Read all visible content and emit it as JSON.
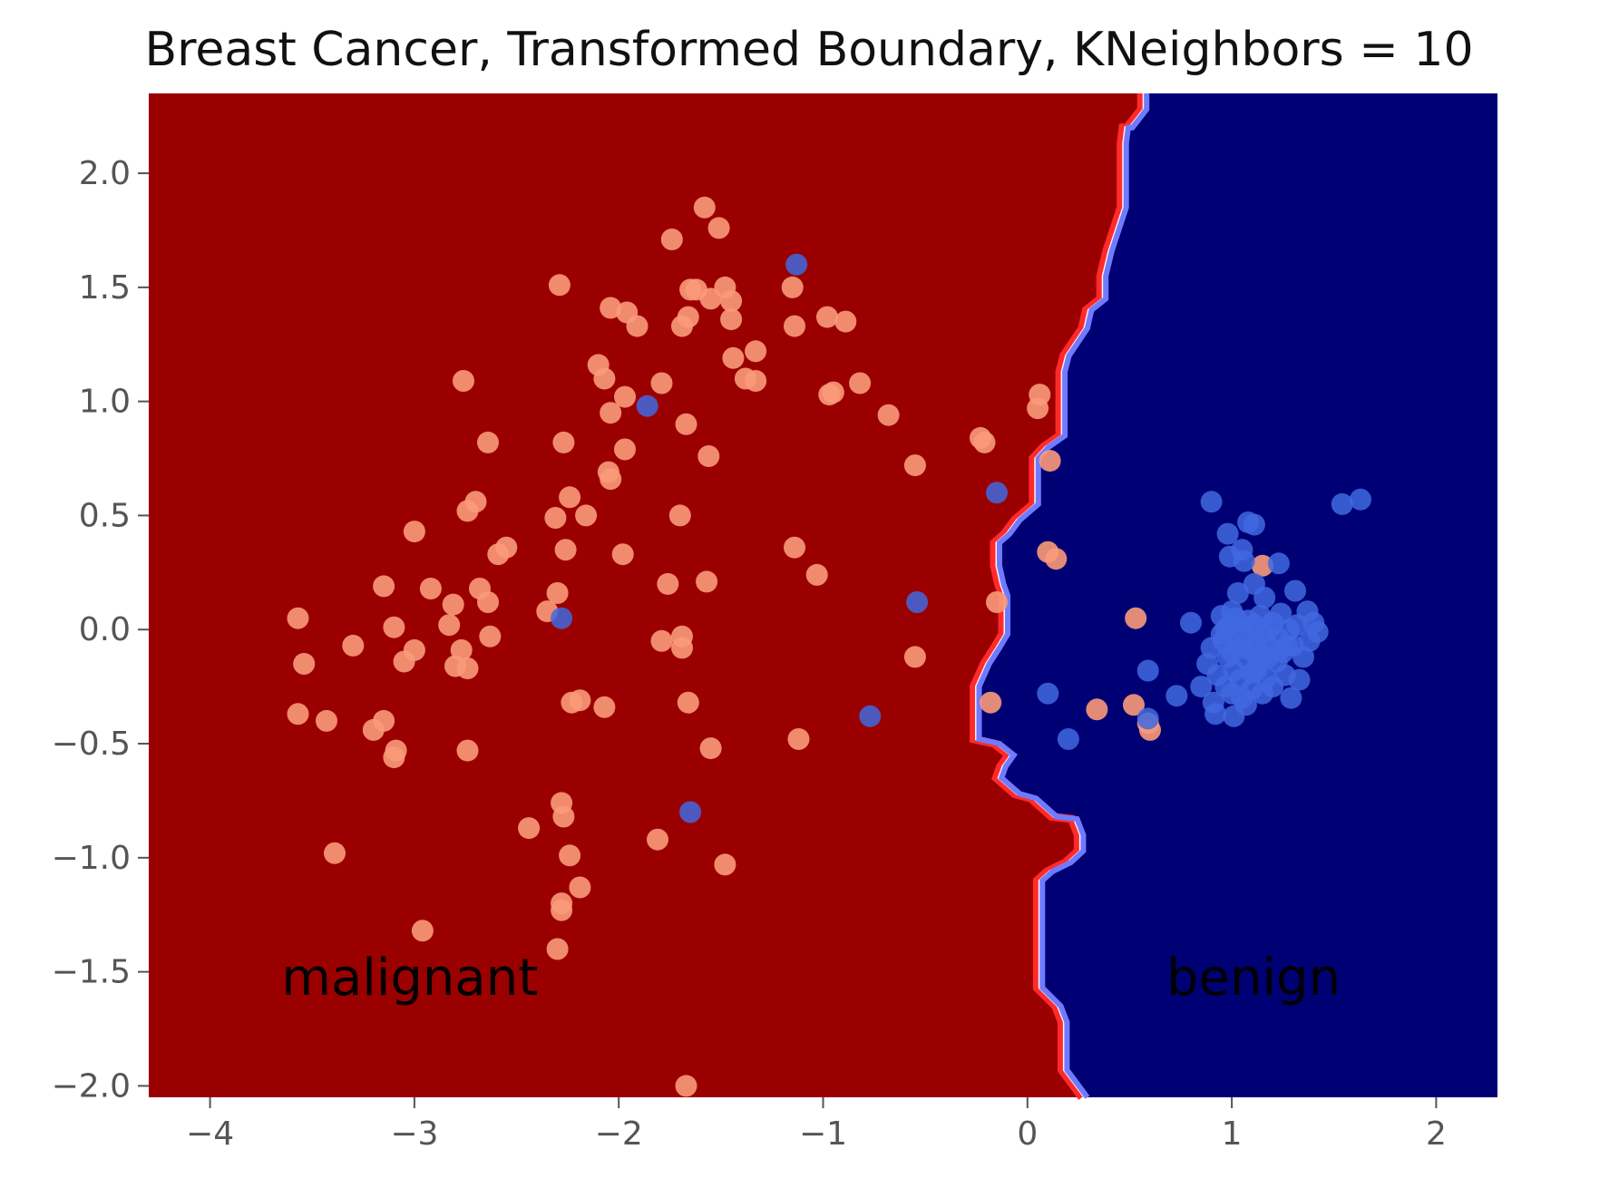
{
  "chart_data": {
    "type": "scatter",
    "title": "Breast Cancer, Transformed Boundary, KNeighbors = 10",
    "xlabel": "",
    "ylabel": "",
    "xlim": [
      -4.3,
      2.3
    ],
    "ylim": [
      -2.05,
      2.35
    ],
    "x_ticks": [
      -4,
      -3,
      -2,
      -1,
      0,
      1,
      2
    ],
    "y_ticks": [
      -2.0,
      -1.5,
      -1.0,
      -0.5,
      0.0,
      0.5,
      1.0,
      1.5,
      2.0
    ],
    "x_tick_labels": [
      "−4",
      "−3",
      "−2",
      "−1",
      "0",
      "1",
      "2"
    ],
    "y_tick_labels": [
      "−2.0",
      "−1.5",
      "−1.0",
      "−0.5",
      "0.0",
      "0.5",
      "1.0",
      "1.5",
      "2.0"
    ],
    "grid": false,
    "background": "decision regions",
    "region_colors": {
      "malignant": "#9b0000",
      "benign": "#000075"
    },
    "point_colors": {
      "malignant": "#fb9a79",
      "benign": "#4169e1"
    },
    "boundary_colors": {
      "malignant_side": "#ff2a2a",
      "benign_side": "#6f7bff"
    },
    "region_labels": [
      {
        "text": "malignant",
        "x": -3.65,
        "y": -1.6
      },
      {
        "text": "benign",
        "x": 0.68,
        "y": -1.6
      }
    ],
    "decision_boundary": [
      [
        0.57,
        2.35
      ],
      [
        0.57,
        2.28
      ],
      [
        0.5,
        2.2
      ],
      [
        0.48,
        2.2
      ],
      [
        0.47,
        2.13
      ],
      [
        0.47,
        1.85
      ],
      [
        0.4,
        1.66
      ],
      [
        0.37,
        1.55
      ],
      [
        0.37,
        1.45
      ],
      [
        0.3,
        1.4
      ],
      [
        0.28,
        1.32
      ],
      [
        0.19,
        1.2
      ],
      [
        0.17,
        1.13
      ],
      [
        0.17,
        0.85
      ],
      [
        0.09,
        0.8
      ],
      [
        0.04,
        0.75
      ],
      [
        0.04,
        0.55
      ],
      [
        -0.05,
        0.48
      ],
      [
        -0.1,
        0.42
      ],
      [
        -0.15,
        0.38
      ],
      [
        -0.15,
        0.28
      ],
      [
        -0.13,
        0.2
      ],
      [
        -0.11,
        0.15
      ],
      [
        -0.11,
        -0.02
      ],
      [
        -0.15,
        -0.08
      ],
      [
        -0.2,
        -0.15
      ],
      [
        -0.25,
        -0.25
      ],
      [
        -0.25,
        -0.48
      ],
      [
        -0.15,
        -0.5
      ],
      [
        -0.08,
        -0.55
      ],
      [
        -0.12,
        -0.6
      ],
      [
        -0.14,
        -0.65
      ],
      [
        -0.05,
        -0.72
      ],
      [
        0.03,
        -0.74
      ],
      [
        0.13,
        -0.82
      ],
      [
        0.23,
        -0.83
      ],
      [
        0.26,
        -0.9
      ],
      [
        0.26,
        -0.97
      ],
      [
        0.2,
        -1.02
      ],
      [
        0.11,
        -1.06
      ],
      [
        0.06,
        -1.1
      ],
      [
        0.06,
        -1.57
      ],
      [
        0.15,
        -1.65
      ],
      [
        0.18,
        -1.72
      ],
      [
        0.18,
        -1.93
      ],
      [
        0.28,
        -2.05
      ]
    ],
    "series": [
      {
        "class": "malignant",
        "points": [
          [
            -1.58,
            1.85
          ],
          [
            -1.51,
            1.76
          ],
          [
            -1.74,
            1.71
          ],
          [
            -2.29,
            1.51
          ],
          [
            -1.65,
            1.49
          ],
          [
            -1.62,
            1.49
          ],
          [
            -1.48,
            1.5
          ],
          [
            -1.45,
            1.44
          ],
          [
            -1.55,
            1.45
          ],
          [
            -2.04,
            1.41
          ],
          [
            -1.96,
            1.39
          ],
          [
            -1.91,
            1.33
          ],
          [
            -1.69,
            1.33
          ],
          [
            -1.66,
            1.37
          ],
          [
            -1.45,
            1.36
          ],
          [
            -1.15,
            1.5
          ],
          [
            -1.14,
            1.33
          ],
          [
            -0.98,
            1.37
          ],
          [
            -0.89,
            1.35
          ],
          [
            -1.33,
            1.22
          ],
          [
            -1.44,
            1.19
          ],
          [
            -2.1,
            1.16
          ],
          [
            -2.07,
            1.1
          ],
          [
            -1.79,
            1.08
          ],
          [
            -1.38,
            1.1
          ],
          [
            -1.33,
            1.09
          ],
          [
            -0.82,
            1.08
          ],
          [
            -0.97,
            1.03
          ],
          [
            -0.95,
            1.04
          ],
          [
            -1.97,
            1.02
          ],
          [
            -2.04,
            0.95
          ],
          [
            -2.76,
            1.09
          ],
          [
            -1.67,
            0.9
          ],
          [
            -0.68,
            0.94
          ],
          [
            -2.27,
            0.82
          ],
          [
            -2.64,
            0.82
          ],
          [
            -1.97,
            0.79
          ],
          [
            -1.56,
            0.76
          ],
          [
            -0.55,
            0.72
          ],
          [
            -2.05,
            0.69
          ],
          [
            -2.04,
            0.66
          ],
          [
            -2.24,
            0.58
          ],
          [
            -2.7,
            0.56
          ],
          [
            -2.74,
            0.52
          ],
          [
            -2.31,
            0.49
          ],
          [
            -2.16,
            0.5
          ],
          [
            -1.7,
            0.5
          ],
          [
            -3.0,
            0.43
          ],
          [
            -2.55,
            0.36
          ],
          [
            -2.59,
            0.33
          ],
          [
            -2.26,
            0.35
          ],
          [
            -1.98,
            0.33
          ],
          [
            -1.14,
            0.36
          ],
          [
            -1.03,
            0.24
          ],
          [
            -1.76,
            0.2
          ],
          [
            -1.57,
            0.21
          ],
          [
            -3.15,
            0.19
          ],
          [
            -2.92,
            0.18
          ],
          [
            -2.68,
            0.18
          ],
          [
            -2.3,
            0.16
          ],
          [
            -2.81,
            0.11
          ],
          [
            -2.64,
            0.12
          ],
          [
            -2.35,
            0.08
          ],
          [
            -3.57,
            0.05
          ],
          [
            -3.1,
            0.01
          ],
          [
            -2.83,
            0.02
          ],
          [
            -2.63,
            -0.03
          ],
          [
            -1.69,
            -0.03
          ],
          [
            -1.79,
            -0.05
          ],
          [
            -3.3,
            -0.07
          ],
          [
            -3.0,
            -0.09
          ],
          [
            -2.77,
            -0.09
          ],
          [
            -1.69,
            -0.08
          ],
          [
            -3.54,
            -0.15
          ],
          [
            -3.05,
            -0.14
          ],
          [
            -2.8,
            -0.16
          ],
          [
            -2.74,
            -0.17
          ],
          [
            -2.23,
            -0.32
          ],
          [
            -2.19,
            -0.31
          ],
          [
            -2.07,
            -0.34
          ],
          [
            -1.66,
            -0.32
          ],
          [
            -3.57,
            -0.37
          ],
          [
            -3.43,
            -0.4
          ],
          [
            -3.15,
            -0.4
          ],
          [
            -3.2,
            -0.44
          ],
          [
            -3.09,
            -0.53
          ],
          [
            -3.1,
            -0.56
          ],
          [
            -2.74,
            -0.53
          ],
          [
            -1.55,
            -0.52
          ],
          [
            -1.12,
            -0.48
          ],
          [
            -2.28,
            -0.76
          ],
          [
            -2.27,
            -0.82
          ],
          [
            -2.44,
            -0.87
          ],
          [
            -2.24,
            -0.99
          ],
          [
            -1.81,
            -0.92
          ],
          [
            -1.48,
            -1.03
          ],
          [
            -3.39,
            -0.98
          ],
          [
            -2.19,
            -1.13
          ],
          [
            -2.28,
            -1.2
          ],
          [
            -2.28,
            -1.23
          ],
          [
            -2.96,
            -1.32
          ],
          [
            -2.3,
            -1.4
          ],
          [
            -1.67,
            -2.0
          ],
          [
            -0.55,
            -0.12
          ],
          [
            -0.15,
            0.12
          ],
          [
            -0.23,
            0.84
          ],
          [
            -0.21,
            0.82
          ],
          [
            0.06,
            1.03
          ],
          [
            0.05,
            0.97
          ],
          [
            0.11,
            0.74
          ],
          [
            0.1,
            0.34
          ],
          [
            0.14,
            0.31
          ],
          [
            -0.18,
            -0.32
          ],
          [
            0.34,
            -0.35
          ],
          [
            0.52,
            -0.33
          ],
          [
            0.53,
            0.05
          ],
          [
            0.59,
            -0.41
          ],
          [
            0.6,
            -0.44
          ],
          [
            1.15,
            0.28
          ]
        ]
      },
      {
        "class": "benign",
        "points": [
          [
            -1.13,
            1.6
          ],
          [
            -1.86,
            0.98
          ],
          [
            -0.15,
            0.6
          ],
          [
            -2.28,
            0.05
          ],
          [
            -0.54,
            0.12
          ],
          [
            -0.77,
            -0.38
          ],
          [
            -1.65,
            -0.8
          ],
          [
            0.1,
            -0.28
          ],
          [
            0.2,
            -0.48
          ],
          [
            0.59,
            -0.18
          ],
          [
            0.59,
            -0.39
          ],
          [
            0.73,
            -0.29
          ],
          [
            0.8,
            0.03
          ],
          [
            0.85,
            -0.25
          ],
          [
            0.88,
            -0.15
          ],
          [
            0.9,
            -0.08
          ],
          [
            0.91,
            -0.32
          ],
          [
            0.93,
            -0.2
          ],
          [
            0.95,
            0.06
          ],
          [
            0.96,
            -0.05
          ],
          [
            0.97,
            0.0
          ],
          [
            0.98,
            -0.12
          ],
          [
            0.99,
            0.02
          ],
          [
            1.0,
            -0.1
          ],
          [
            1.01,
            -0.18
          ],
          [
            1.02,
            0.05
          ],
          [
            1.03,
            -0.08
          ],
          [
            1.04,
            -0.22
          ],
          [
            1.05,
            0.0
          ],
          [
            1.06,
            -0.04
          ],
          [
            1.07,
            -0.13
          ],
          [
            1.08,
            0.04
          ],
          [
            1.09,
            -0.09
          ],
          [
            1.1,
            -0.19
          ],
          [
            1.11,
            0.02
          ],
          [
            1.12,
            -0.06
          ],
          [
            1.13,
            -0.15
          ],
          [
            1.14,
            0.06
          ],
          [
            1.15,
            -0.02
          ],
          [
            1.16,
            -0.11
          ],
          [
            1.17,
            -0.21
          ],
          [
            1.18,
            0.0
          ],
          [
            1.19,
            -0.08
          ],
          [
            1.2,
            0.03
          ],
          [
            1.22,
            -0.14
          ],
          [
            1.23,
            -0.04
          ],
          [
            1.24,
            0.07
          ],
          [
            1.25,
            -0.1
          ],
          [
            1.26,
            -0.2
          ],
          [
            1.28,
            0.0
          ],
          [
            1.3,
            -0.07
          ],
          [
            1.32,
            0.02
          ],
          [
            1.35,
            -0.12
          ],
          [
            1.38,
            -0.05
          ],
          [
            1.4,
            0.03
          ],
          [
            1.42,
            -0.01
          ],
          [
            0.97,
            -0.25
          ],
          [
            1.0,
            -0.28
          ],
          [
            1.05,
            -0.3
          ],
          [
            1.1,
            -0.26
          ],
          [
            1.15,
            -0.28
          ],
          [
            1.2,
            -0.25
          ],
          [
            0.92,
            -0.37
          ],
          [
            1.01,
            -0.38
          ],
          [
            1.07,
            -0.33
          ],
          [
            1.29,
            -0.3
          ],
          [
            1.33,
            -0.22
          ],
          [
            0.9,
            0.56
          ],
          [
            0.98,
            0.42
          ],
          [
            1.08,
            0.47
          ],
          [
            1.11,
            0.46
          ],
          [
            1.05,
            0.35
          ],
          [
            1.06,
            0.3
          ],
          [
            0.99,
            0.32
          ],
          [
            1.03,
            0.16
          ],
          [
            1.11,
            0.2
          ],
          [
            1.16,
            0.14
          ],
          [
            1.23,
            0.29
          ],
          [
            1.31,
            0.17
          ],
          [
            1.37,
            0.08
          ],
          [
            1.54,
            0.55
          ],
          [
            1.63,
            0.57
          ],
          [
            0.95,
            -0.02
          ],
          [
            1.0,
            0.08
          ],
          [
            1.12,
            -0.18
          ],
          [
            1.18,
            -0.12
          ],
          [
            1.27,
            -0.07
          ]
        ]
      }
    ]
  }
}
